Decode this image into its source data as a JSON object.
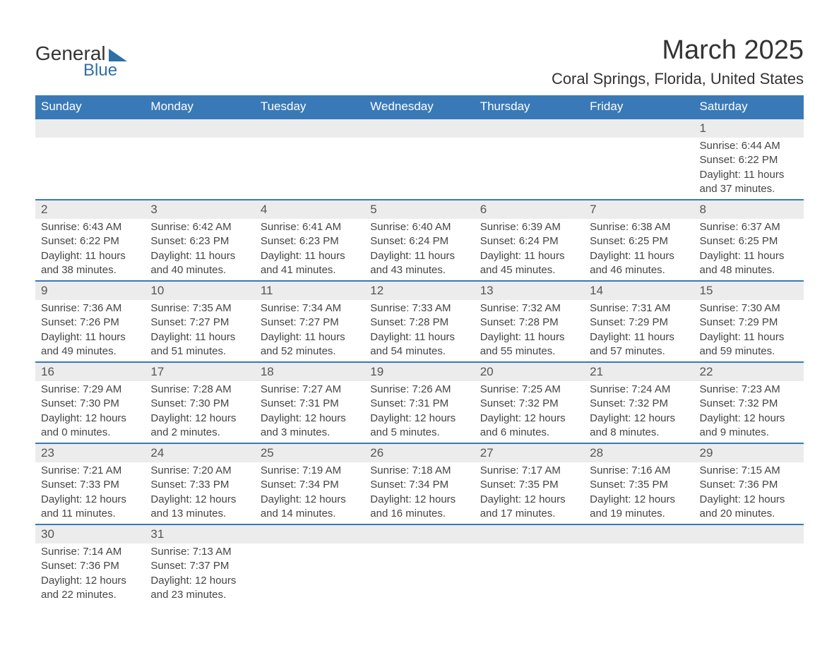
{
  "logo": {
    "text1": "General",
    "text2": "Blue"
  },
  "title": {
    "month": "March 2025",
    "location": "Coral Springs, Florida, United States"
  },
  "style": {
    "header_bg": "#3a79b7",
    "header_fg": "#ffffff",
    "daynum_bg": "#ececec",
    "daynum_fg": "#555555",
    "body_fg": "#444444",
    "rule_color": "#3a79b7",
    "title_fontsize": 38,
    "location_fontsize": 22,
    "header_fontsize": 17,
    "daynum_fontsize": 17,
    "cell_fontsize": 15
  },
  "weekdays": [
    "Sunday",
    "Monday",
    "Tuesday",
    "Wednesday",
    "Thursday",
    "Friday",
    "Saturday"
  ],
  "weeks": [
    [
      null,
      null,
      null,
      null,
      null,
      null,
      {
        "n": "1",
        "sr": "Sunrise: 6:44 AM",
        "ss": "Sunset: 6:22 PM",
        "d1": "Daylight: 11 hours",
        "d2": "and 37 minutes."
      }
    ],
    [
      {
        "n": "2",
        "sr": "Sunrise: 6:43 AM",
        "ss": "Sunset: 6:22 PM",
        "d1": "Daylight: 11 hours",
        "d2": "and 38 minutes."
      },
      {
        "n": "3",
        "sr": "Sunrise: 6:42 AM",
        "ss": "Sunset: 6:23 PM",
        "d1": "Daylight: 11 hours",
        "d2": "and 40 minutes."
      },
      {
        "n": "4",
        "sr": "Sunrise: 6:41 AM",
        "ss": "Sunset: 6:23 PM",
        "d1": "Daylight: 11 hours",
        "d2": "and 41 minutes."
      },
      {
        "n": "5",
        "sr": "Sunrise: 6:40 AM",
        "ss": "Sunset: 6:24 PM",
        "d1": "Daylight: 11 hours",
        "d2": "and 43 minutes."
      },
      {
        "n": "6",
        "sr": "Sunrise: 6:39 AM",
        "ss": "Sunset: 6:24 PM",
        "d1": "Daylight: 11 hours",
        "d2": "and 45 minutes."
      },
      {
        "n": "7",
        "sr": "Sunrise: 6:38 AM",
        "ss": "Sunset: 6:25 PM",
        "d1": "Daylight: 11 hours",
        "d2": "and 46 minutes."
      },
      {
        "n": "8",
        "sr": "Sunrise: 6:37 AM",
        "ss": "Sunset: 6:25 PM",
        "d1": "Daylight: 11 hours",
        "d2": "and 48 minutes."
      }
    ],
    [
      {
        "n": "9",
        "sr": "Sunrise: 7:36 AM",
        "ss": "Sunset: 7:26 PM",
        "d1": "Daylight: 11 hours",
        "d2": "and 49 minutes."
      },
      {
        "n": "10",
        "sr": "Sunrise: 7:35 AM",
        "ss": "Sunset: 7:27 PM",
        "d1": "Daylight: 11 hours",
        "d2": "and 51 minutes."
      },
      {
        "n": "11",
        "sr": "Sunrise: 7:34 AM",
        "ss": "Sunset: 7:27 PM",
        "d1": "Daylight: 11 hours",
        "d2": "and 52 minutes."
      },
      {
        "n": "12",
        "sr": "Sunrise: 7:33 AM",
        "ss": "Sunset: 7:28 PM",
        "d1": "Daylight: 11 hours",
        "d2": "and 54 minutes."
      },
      {
        "n": "13",
        "sr": "Sunrise: 7:32 AM",
        "ss": "Sunset: 7:28 PM",
        "d1": "Daylight: 11 hours",
        "d2": "and 55 minutes."
      },
      {
        "n": "14",
        "sr": "Sunrise: 7:31 AM",
        "ss": "Sunset: 7:29 PM",
        "d1": "Daylight: 11 hours",
        "d2": "and 57 minutes."
      },
      {
        "n": "15",
        "sr": "Sunrise: 7:30 AM",
        "ss": "Sunset: 7:29 PM",
        "d1": "Daylight: 11 hours",
        "d2": "and 59 minutes."
      }
    ],
    [
      {
        "n": "16",
        "sr": "Sunrise: 7:29 AM",
        "ss": "Sunset: 7:30 PM",
        "d1": "Daylight: 12 hours",
        "d2": "and 0 minutes."
      },
      {
        "n": "17",
        "sr": "Sunrise: 7:28 AM",
        "ss": "Sunset: 7:30 PM",
        "d1": "Daylight: 12 hours",
        "d2": "and 2 minutes."
      },
      {
        "n": "18",
        "sr": "Sunrise: 7:27 AM",
        "ss": "Sunset: 7:31 PM",
        "d1": "Daylight: 12 hours",
        "d2": "and 3 minutes."
      },
      {
        "n": "19",
        "sr": "Sunrise: 7:26 AM",
        "ss": "Sunset: 7:31 PM",
        "d1": "Daylight: 12 hours",
        "d2": "and 5 minutes."
      },
      {
        "n": "20",
        "sr": "Sunrise: 7:25 AM",
        "ss": "Sunset: 7:32 PM",
        "d1": "Daylight: 12 hours",
        "d2": "and 6 minutes."
      },
      {
        "n": "21",
        "sr": "Sunrise: 7:24 AM",
        "ss": "Sunset: 7:32 PM",
        "d1": "Daylight: 12 hours",
        "d2": "and 8 minutes."
      },
      {
        "n": "22",
        "sr": "Sunrise: 7:23 AM",
        "ss": "Sunset: 7:32 PM",
        "d1": "Daylight: 12 hours",
        "d2": "and 9 minutes."
      }
    ],
    [
      {
        "n": "23",
        "sr": "Sunrise: 7:21 AM",
        "ss": "Sunset: 7:33 PM",
        "d1": "Daylight: 12 hours",
        "d2": "and 11 minutes."
      },
      {
        "n": "24",
        "sr": "Sunrise: 7:20 AM",
        "ss": "Sunset: 7:33 PM",
        "d1": "Daylight: 12 hours",
        "d2": "and 13 minutes."
      },
      {
        "n": "25",
        "sr": "Sunrise: 7:19 AM",
        "ss": "Sunset: 7:34 PM",
        "d1": "Daylight: 12 hours",
        "d2": "and 14 minutes."
      },
      {
        "n": "26",
        "sr": "Sunrise: 7:18 AM",
        "ss": "Sunset: 7:34 PM",
        "d1": "Daylight: 12 hours",
        "d2": "and 16 minutes."
      },
      {
        "n": "27",
        "sr": "Sunrise: 7:17 AM",
        "ss": "Sunset: 7:35 PM",
        "d1": "Daylight: 12 hours",
        "d2": "and 17 minutes."
      },
      {
        "n": "28",
        "sr": "Sunrise: 7:16 AM",
        "ss": "Sunset: 7:35 PM",
        "d1": "Daylight: 12 hours",
        "d2": "and 19 minutes."
      },
      {
        "n": "29",
        "sr": "Sunrise: 7:15 AM",
        "ss": "Sunset: 7:36 PM",
        "d1": "Daylight: 12 hours",
        "d2": "and 20 minutes."
      }
    ],
    [
      {
        "n": "30",
        "sr": "Sunrise: 7:14 AM",
        "ss": "Sunset: 7:36 PM",
        "d1": "Daylight: 12 hours",
        "d2": "and 22 minutes."
      },
      {
        "n": "31",
        "sr": "Sunrise: 7:13 AM",
        "ss": "Sunset: 7:37 PM",
        "d1": "Daylight: 12 hours",
        "d2": "and 23 minutes."
      },
      null,
      null,
      null,
      null,
      null
    ]
  ]
}
